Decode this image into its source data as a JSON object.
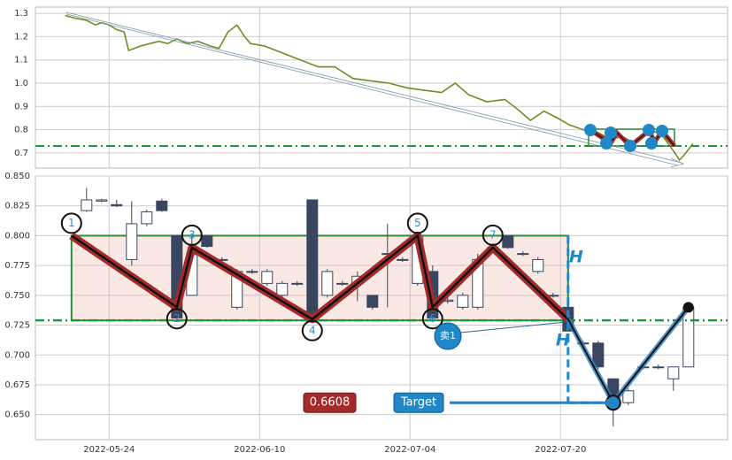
{
  "chart_data": [
    {
      "type": "line",
      "color": "#6b8e23",
      "x": [
        6.6,
        7.2,
        8,
        8.6,
        9,
        9.5,
        10,
        10.5,
        10.8,
        11.6,
        12.2,
        12.8,
        13.4,
        14,
        14.7,
        15.4,
        16.2,
        16.8,
        17.4,
        18,
        18.5,
        18.9,
        19.8,
        21,
        22.2,
        23.4,
        24.5,
        25.7,
        26.9,
        28.1,
        29.3,
        30.4,
        31.6,
        32.5,
        33.4,
        34.6,
        35.8,
        36.6,
        37.5,
        38.4,
        39.3,
        40.1,
        41,
        41.9,
        42.8,
        43.6,
        44.5,
        45.4,
        46.2,
        47.1,
        47.4,
        47.7,
        48.3
      ],
      "values": [
        1.29,
        1.28,
        1.27,
        1.25,
        1.26,
        1.25,
        1.23,
        1.22,
        1.14,
        1.16,
        1.17,
        1.18,
        1.17,
        1.19,
        1.17,
        1.18,
        1.16,
        1.15,
        1.22,
        1.25,
        1.2,
        1.17,
        1.16,
        1.13,
        1.1,
        1.07,
        1.07,
        1.02,
        1.01,
        1.0,
        0.98,
        0.97,
        0.96,
        1.0,
        0.95,
        0.92,
        0.93,
        0.89,
        0.84,
        0.88,
        0.85,
        0.82,
        0.8,
        0.79,
        0.76,
        0.77,
        0.74,
        0.8,
        0.78,
        0.7,
        0.67,
        0.69,
        0.74
      ],
      "xlim": [
        4.6,
        50.6
      ],
      "ylim": [
        0.635,
        1.327
      ],
      "yticks": [
        1.3,
        1.2,
        1.1,
        {
          "value": 1.0,
          "label": "1.0"
        },
        0.9,
        0.8,
        0.7
      ],
      "neckline": 0.73,
      "grid": true
    },
    {
      "type": "candlestick",
      "x": [
        8,
        9,
        10,
        11,
        12,
        13,
        14,
        15,
        16,
        17,
        18,
        19,
        20,
        21,
        22,
        23,
        24,
        25,
        26,
        27,
        28,
        29,
        30,
        31,
        32,
        33,
        34,
        35,
        36,
        37,
        38,
        39,
        40,
        41,
        42,
        43,
        44,
        45,
        46,
        47,
        48
      ],
      "open": [
        0.821,
        0.829,
        0.826,
        0.78,
        0.81,
        0.829,
        0.8,
        0.75,
        0.8,
        0.78,
        0.74,
        0.77,
        0.76,
        0.75,
        0.76,
        0.83,
        0.75,
        0.76,
        0.76,
        0.75,
        0.785,
        0.78,
        0.76,
        0.77,
        0.745,
        0.74,
        0.74,
        0.79,
        0.8,
        0.785,
        0.77,
        0.75,
        0.74,
        0.71,
        0.71,
        0.68,
        0.66,
        0.69,
        0.69,
        0.68,
        0.69
      ],
      "high": [
        0.84,
        0.831,
        0.83,
        0.829,
        0.822,
        0.831,
        0.8,
        0.8,
        0.8,
        0.782,
        0.772,
        0.772,
        0.772,
        0.762,
        0.762,
        0.83,
        0.772,
        0.762,
        0.77,
        0.75,
        0.81,
        0.782,
        0.8,
        0.775,
        0.748,
        0.752,
        0.785,
        0.792,
        0.8,
        0.787,
        0.782,
        0.752,
        0.742,
        0.712,
        0.712,
        0.68,
        0.672,
        0.692,
        0.692,
        0.69,
        0.742
      ],
      "low": [
        0.82,
        0.828,
        0.824,
        0.775,
        0.808,
        0.82,
        0.73,
        0.75,
        0.79,
        0.778,
        0.738,
        0.768,
        0.758,
        0.748,
        0.758,
        0.73,
        0.748,
        0.758,
        0.745,
        0.738,
        0.74,
        0.778,
        0.758,
        0.73,
        0.743,
        0.738,
        0.738,
        0.788,
        0.789,
        0.783,
        0.768,
        0.748,
        0.72,
        0.708,
        0.688,
        0.64,
        0.658,
        0.688,
        0.688,
        0.67,
        0.69
      ],
      "close": [
        0.83,
        0.83,
        0.825,
        0.81,
        0.82,
        0.821,
        0.731,
        0.784,
        0.791,
        0.78,
        0.77,
        0.77,
        0.77,
        0.76,
        0.76,
        0.731,
        0.77,
        0.76,
        0.766,
        0.74,
        0.785,
        0.78,
        0.8,
        0.731,
        0.746,
        0.75,
        0.78,
        0.79,
        0.79,
        0.785,
        0.78,
        0.75,
        0.72,
        0.71,
        0.69,
        0.66,
        0.67,
        0.69,
        0.69,
        0.69,
        0.74
      ],
      "xlim": [
        4.6,
        50.6
      ],
      "ylim": [
        0.629,
        0.85
      ],
      "xticks": [
        {
          "value": 9.5,
          "label": "2022-05-24"
        },
        {
          "value": 19.5,
          "label": "2022-06-10"
        },
        {
          "value": 29.5,
          "label": "2022-07-04"
        },
        {
          "value": 39.5,
          "label": "2022-07-20"
        }
      ],
      "yticks": [
        {
          "value": 0.85,
          "label": "0.850"
        },
        0.825,
        {
          "value": 0.8,
          "label": "0.800"
        },
        0.775,
        {
          "value": 0.75,
          "label": "0.750"
        },
        0.725,
        {
          "value": 0.7,
          "label": "0.700"
        },
        0.675,
        {
          "value": 0.65,
          "label": "0.650"
        }
      ],
      "grid": true,
      "box": {
        "xlim": [
          7,
          40
        ],
        "ylim": [
          0.729,
          0.8
        ]
      },
      "neckline": 0.729,
      "zigzag": {
        "x": [
          7,
          14,
          15,
          23,
          30,
          31,
          35,
          40
        ],
        "values": [
          0.8,
          0.74,
          0.79,
          0.73,
          0.8,
          0.74,
          0.79,
          0.73
        ],
        "labels": [
          1,
          2,
          3,
          4,
          5,
          6,
          7
        ]
      },
      "projection": {
        "x": [
          40,
          43,
          48
        ],
        "values": [
          0.73,
          0.66,
          0.74
        ]
      },
      "target": 0.66,
      "annotations": {
        "height_label": "H",
        "target_label": "Target",
        "price_label": 0.6608,
        "sell_label": "卖1"
      }
    }
  ]
}
